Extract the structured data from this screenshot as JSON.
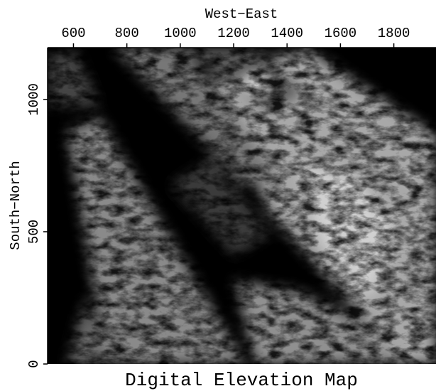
{
  "chart_data": {
    "type": "image",
    "title": "Digital Elevation Map",
    "xlabel": "West−East",
    "ylabel": "South−North",
    "xlim": [
      503,
      1958
    ],
    "ylim": [
      0,
      1196
    ],
    "xticks": [
      600,
      800,
      1000,
      1200,
      1400,
      1600,
      1800
    ],
    "yticks": [
      0,
      500,
      1000
    ],
    "colormap": "gray"
  }
}
